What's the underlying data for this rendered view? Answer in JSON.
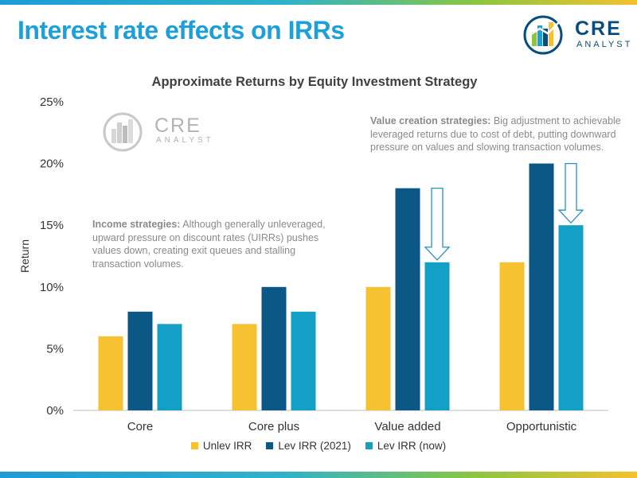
{
  "slide": {
    "title": "Interest rate effects on IRRs",
    "logo_main": "CRE",
    "logo_sub": "ANALYST"
  },
  "watermark": {
    "main": "CRE",
    "sub": "ANALYST"
  },
  "notes": {
    "income": {
      "heading": "Income strategies:",
      "body": " Although generally unleveraged, upward pressure on discount rates (UIRRs) pushes values down, creating exit queues and stalling transaction volumes."
    },
    "value": {
      "heading": "Value creation strategies:",
      "body": " Big adjustment to achievable leveraged returns due to cost of debt, putting downward pressure on values and slowing transaction volumes."
    }
  },
  "chart_data": {
    "type": "bar",
    "title": "Approximate Returns by Equity Investment Strategy",
    "ylabel": "Return",
    "xlabel": "",
    "ylim": [
      0,
      25
    ],
    "yticks": [
      "0%",
      "5%",
      "10%",
      "15%",
      "20%",
      "25%"
    ],
    "categories": [
      "Core",
      "Core plus",
      "Value added",
      "Opportunistic"
    ],
    "series": [
      {
        "name": "Unlev IRR",
        "values": [
          6,
          7,
          10,
          12
        ],
        "color": "#f6c232"
      },
      {
        "name": "Lev IRR (2021)",
        "values": [
          8,
          10,
          18,
          20
        ],
        "color": "#0b5786"
      },
      {
        "name": "Lev IRR (now)",
        "values": [
          7,
          8,
          12,
          15
        ],
        "color": "#14a0c6"
      }
    ],
    "arrows": [
      {
        "category": "Value added",
        "from": 18,
        "to": 12
      },
      {
        "category": "Opportunistic",
        "from": 20,
        "to": 15
      }
    ],
    "legend_position": "bottom",
    "grid": false
  }
}
